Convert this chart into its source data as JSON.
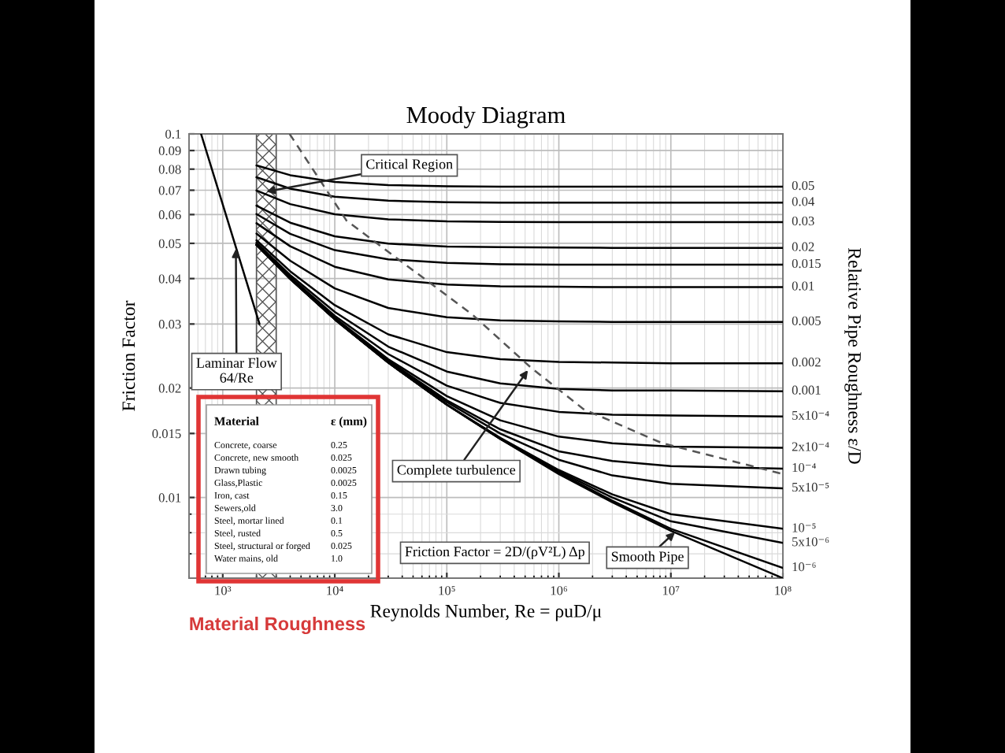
{
  "chart_data": {
    "type": "line",
    "title": "Moody Diagram",
    "xlabel": "Reynolds Number, Re = ρuD/μ",
    "ylabel": "Friction Factor",
    "y2label": "Relative Pipe Roughness ε/D",
    "log": "xy",
    "grid": true,
    "xlim": [
      500,
      100000000
    ],
    "ylim": [
      0.006,
      0.1
    ],
    "xticks": [
      {
        "value": 1000,
        "label": "10³"
      },
      {
        "value": 10000,
        "label": "10⁴"
      },
      {
        "value": 100000,
        "label": "10⁵"
      },
      {
        "value": 1000000,
        "label": "10⁶"
      },
      {
        "value": 10000000,
        "label": "10⁷"
      },
      {
        "value": 100000000,
        "label": "10⁸"
      }
    ],
    "yticks": [
      0.01,
      0.015,
      0.02,
      0.03,
      0.04,
      0.05,
      0.06,
      0.07,
      0.08,
      0.09,
      0.1
    ],
    "x": [
      2000,
      4000,
      10000,
      30000,
      100000,
      300000,
      1000000,
      3000000,
      10000000,
      100000000
    ],
    "series": [
      {
        "name": "0.05",
        "color": "#000000",
        "values": [
          0.0819,
          0.077,
          0.0738,
          0.0723,
          0.0718,
          0.0716,
          0.0716,
          0.0716,
          0.0716,
          0.0716
        ]
      },
      {
        "name": "0.04",
        "color": "#000000",
        "values": [
          0.076,
          0.0707,
          0.0672,
          0.0655,
          0.0649,
          0.0647,
          0.0647,
          0.0647,
          0.0647,
          0.0647
        ]
      },
      {
        "name": "0.03",
        "color": "#000000",
        "values": [
          0.0699,
          0.0641,
          0.0601,
          0.0582,
          0.0575,
          0.0573,
          0.0572,
          0.0572,
          0.0572,
          0.0572
        ]
      },
      {
        "name": "0.02",
        "color": "#000000",
        "values": [
          0.0635,
          0.057,
          0.0523,
          0.0499,
          0.049,
          0.0488,
          0.0487,
          0.0486,
          0.0486,
          0.0486
        ]
      },
      {
        "name": "0.015",
        "color": "#000000",
        "values": [
          0.0602,
          0.0531,
          0.0479,
          0.0452,
          0.0442,
          0.0438,
          0.0437,
          0.0437,
          0.0437,
          0.0437
        ]
      },
      {
        "name": "0.01",
        "color": "#000000",
        "values": [
          0.0568,
          0.0491,
          0.0431,
          0.0398,
          0.0385,
          0.0381,
          0.038,
          0.0379,
          0.0379,
          0.0379
        ]
      },
      {
        "name": "0.005",
        "color": "#000000",
        "values": [
          0.0532,
          0.0448,
          0.0376,
          0.0332,
          0.0313,
          0.0307,
          0.0305,
          0.0304,
          0.0304,
          0.0304
        ]
      },
      {
        "name": "0.002",
        "color": "#000000",
        "values": [
          0.051,
          0.0419,
          0.0338,
          0.0281,
          0.0251,
          0.024,
          0.0236,
          0.0235,
          0.0234,
          0.0234
        ]
      },
      {
        "name": "0.001",
        "color": "#000000",
        "values": [
          0.0502,
          0.0409,
          0.0324,
          0.026,
          0.0222,
          0.0206,
          0.0199,
          0.0197,
          0.0197,
          0.0196
        ]
      },
      {
        "name": "5x10⁻⁴",
        "color": "#000000",
        "values": [
          0.0498,
          0.0404,
          0.0316,
          0.0248,
          0.0203,
          0.0182,
          0.0172,
          0.0169,
          0.0168,
          0.0167
        ]
      },
      {
        "name": "2x10⁻⁴",
        "color": "#000000",
        "values": [
          0.0496,
          0.0401,
          0.0312,
          0.024,
          0.019,
          0.0163,
          0.0147,
          0.0141,
          0.0138,
          0.0137
        ]
      },
      {
        "name": "10⁻⁴",
        "color": "#000000",
        "values": [
          0.0495,
          0.04,
          0.0311,
          0.0238,
          0.0185,
          0.0154,
          0.0134,
          0.0126,
          0.0122,
          0.012
        ]
      },
      {
        "name": "5x10⁻⁵",
        "color": "#000000",
        "values": [
          0.0495,
          0.04,
          0.031,
          0.0236,
          0.0183,
          0.015,
          0.0127,
          0.0115,
          0.0109,
          0.0106
        ]
      },
      {
        "name": "10⁻⁵",
        "color": "#000000",
        "values": [
          0.0495,
          0.0399,
          0.0309,
          0.0235,
          0.018,
          0.0146,
          0.0119,
          0.0102,
          0.009,
          0.0082
        ]
      },
      {
        "name": "5x10⁻⁶",
        "color": "#000000",
        "values": [
          0.0495,
          0.0399,
          0.0309,
          0.0235,
          0.018,
          0.0145,
          0.0118,
          0.01,
          0.0086,
          0.0075
        ]
      },
      {
        "name": "10⁻⁶",
        "color": "#000000",
        "values": [
          0.0495,
          0.0399,
          0.0309,
          0.0235,
          0.018,
          0.0145,
          0.0117,
          0.0098,
          0.0082,
          0.0064
        ]
      },
      {
        "color": "#000000",
        "values": [
          0.0495,
          0.0399,
          0.0309,
          0.0235,
          0.018,
          0.0145,
          0.0116,
          0.0097,
          0.0081,
          0.006
        ]
      },
      {
        "color": "#000000",
        "x": [
          640,
          2130
        ],
        "values": [
          0.1,
          0.03
        ]
      },
      {
        "color": "#555555",
        "line_style": "dashed",
        "x": [
          3950,
          12700,
          170000,
          560000,
          1660000,
          8400000,
          100000000
        ],
        "values": [
          0.1,
          0.0578,
          0.0318,
          0.0228,
          0.0175,
          0.0141,
          0.0116
        ]
      }
    ],
    "bands": [
      {
        "axis": "x",
        "from": 2000,
        "to": 3000,
        "label": "Critical Region",
        "color": "#555555"
      }
    ],
    "annotations": [
      {
        "text": "Laminar Flow\n64/Re",
        "x": 1310,
        "y": 0.0483
      },
      {
        "text": "Complete turbulence",
        "x": 530000,
        "y": 0.0224
      },
      {
        "text": "Smooth Pipe",
        "x": 10900000,
        "y": 0.00803
      },
      "Friction Factor = 2D/(ρV²L) Δp",
      "Material\tε (mm)\nConcrete, coarse\t0.25\nConcrete, new smooth\t0.025\nDrawn tubing\t0.0025\nGlass,Plastic\t0.0025\nIron, cast\t0.15\nSewers,old\t3.0\nSteel, mortar lined\t0.1\nSteel, rusted\t0.5\nSteel, structural or forged\t0.025\nWater mains, old\t1.0",
      "Material Roughness"
    ]
  }
}
